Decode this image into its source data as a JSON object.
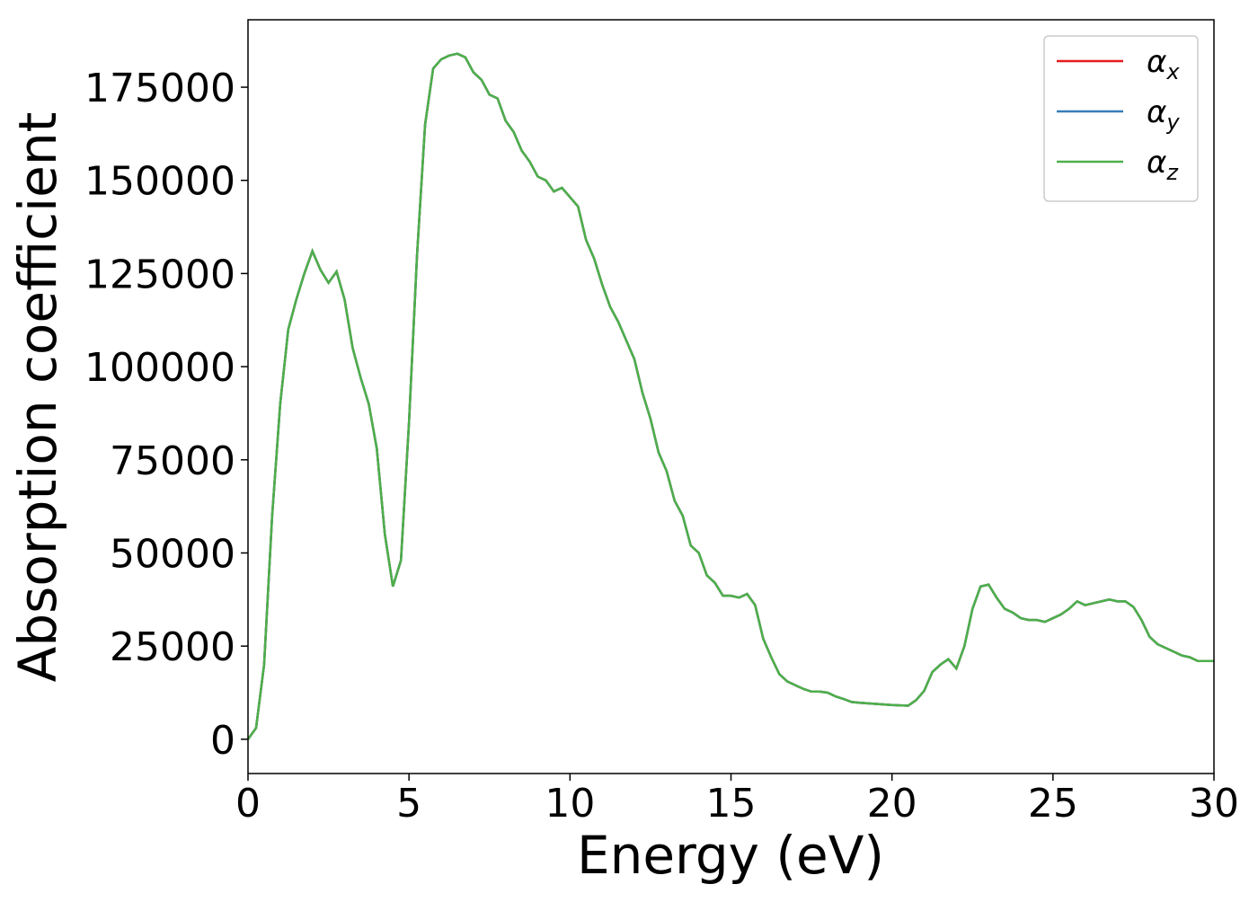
{
  "chart_data": {
    "type": "line",
    "xlabel": "Energy (eV)",
    "ylabel": "Absorption coefficient",
    "x": [
      0,
      0.25,
      0.5,
      0.75,
      1,
      1.25,
      1.5,
      1.75,
      2,
      2.25,
      2.5,
      2.75,
      3,
      3.25,
      3.5,
      3.75,
      4,
      4.25,
      4.5,
      4.75,
      5,
      5.25,
      5.5,
      5.75,
      6,
      6.25,
      6.5,
      6.75,
      7,
      7.25,
      7.5,
      7.75,
      8,
      8.25,
      8.5,
      8.75,
      9,
      9.25,
      9.5,
      9.75,
      10,
      10.25,
      10.5,
      10.75,
      11,
      11.25,
      11.5,
      11.75,
      12,
      12.25,
      12.5,
      12.75,
      13,
      13.25,
      13.5,
      13.75,
      14,
      14.25,
      14.5,
      14.75,
      15,
      15.25,
      15.5,
      15.75,
      16,
      16.25,
      16.5,
      16.75,
      17,
      17.25,
      17.5,
      17.75,
      18,
      18.25,
      18.5,
      18.75,
      19,
      19.5,
      20,
      20.5,
      20.75,
      21,
      21.25,
      21.5,
      21.75,
      22,
      22.25,
      22.5,
      22.75,
      23,
      23.25,
      23.5,
      23.75,
      24,
      24.25,
      24.5,
      24.75,
      25,
      25.25,
      25.5,
      25.75,
      26,
      26.25,
      26.5,
      26.75,
      27,
      27.25,
      27.5,
      27.75,
      28,
      28.25,
      28.5,
      28.75,
      29,
      29.25,
      29.5,
      30
    ],
    "series": [
      {
        "name": "αx",
        "color": "#e41a1c",
        "values": [
          0,
          3000,
          20000,
          60000,
          90000,
          110000,
          118000,
          125000,
          131000,
          126000,
          122500,
          125500,
          118000,
          105000,
          97000,
          90000,
          78000,
          55000,
          41000,
          48000,
          85000,
          130000,
          165000,
          180000,
          182500,
          183500,
          184000,
          183000,
          179000,
          177000,
          173000,
          172000,
          166000,
          163000,
          158000,
          155000,
          151000,
          150000,
          147000,
          148000,
          145500,
          143000,
          134000,
          129000,
          122000,
          116000,
          112000,
          107000,
          102000,
          93000,
          86000,
          77000,
          72000,
          64000,
          60000,
          52000,
          50000,
          44000,
          42000,
          38500,
          38500,
          38000,
          39000,
          36000,
          27000,
          22000,
          17500,
          15500,
          14500,
          13500,
          12800,
          12800,
          12500,
          11500,
          10800,
          10000,
          9800,
          9500,
          9200,
          9000,
          10500,
          13000,
          18000,
          20000,
          21500,
          19000,
          25000,
          35000,
          41000,
          41500,
          38000,
          35000,
          34000,
          32500,
          32000,
          32000,
          31500,
          32500,
          33500,
          35000,
          37000,
          36000,
          36500,
          37000,
          37500,
          37000,
          37000,
          35500,
          32000,
          27500,
          25500,
          24500,
          23500,
          22500,
          22000,
          21000,
          21000
        ]
      },
      {
        "name": "αy",
        "color": "#377eb8",
        "values": [
          0,
          3000,
          20000,
          60000,
          90000,
          110000,
          118000,
          125000,
          131000,
          126000,
          122500,
          125500,
          118000,
          105000,
          97000,
          90000,
          78000,
          55000,
          41000,
          48000,
          85000,
          130000,
          165000,
          180000,
          182500,
          183500,
          184000,
          183000,
          179000,
          177000,
          173000,
          172000,
          166000,
          163000,
          158000,
          155000,
          151000,
          150000,
          147000,
          148000,
          145500,
          143000,
          134000,
          129000,
          122000,
          116000,
          112000,
          107000,
          102000,
          93000,
          86000,
          77000,
          72000,
          64000,
          60000,
          52000,
          50000,
          44000,
          42000,
          38500,
          38500,
          38000,
          39000,
          36000,
          27000,
          22000,
          17500,
          15500,
          14500,
          13500,
          12800,
          12800,
          12500,
          11500,
          10800,
          10000,
          9800,
          9500,
          9200,
          9000,
          10500,
          13000,
          18000,
          20000,
          21500,
          19000,
          25000,
          35000,
          41000,
          41500,
          38000,
          35000,
          34000,
          32500,
          32000,
          32000,
          31500,
          32500,
          33500,
          35000,
          37000,
          36000,
          36500,
          37000,
          37500,
          37000,
          37000,
          35500,
          32000,
          27500,
          25500,
          24500,
          23500,
          22500,
          22000,
          21000,
          21000
        ]
      },
      {
        "name": "αz",
        "color": "#4daf4a",
        "values": [
          0,
          3000,
          20000,
          60000,
          90000,
          110000,
          118000,
          125000,
          131000,
          126000,
          122500,
          125500,
          118000,
          105000,
          97000,
          90000,
          78000,
          55000,
          41000,
          48000,
          85000,
          130000,
          165000,
          180000,
          182500,
          183500,
          184000,
          183000,
          179000,
          177000,
          173000,
          172000,
          166000,
          163000,
          158000,
          155000,
          151000,
          150000,
          147000,
          148000,
          145500,
          143000,
          134000,
          129000,
          122000,
          116000,
          112000,
          107000,
          102000,
          93000,
          86000,
          77000,
          72000,
          64000,
          60000,
          52000,
          50000,
          44000,
          42000,
          38500,
          38500,
          38000,
          39000,
          36000,
          27000,
          22000,
          17500,
          15500,
          14500,
          13500,
          12800,
          12800,
          12500,
          11500,
          10800,
          10000,
          9800,
          9500,
          9200,
          9000,
          10500,
          13000,
          18000,
          20000,
          21500,
          19000,
          25000,
          35000,
          41000,
          41500,
          38000,
          35000,
          34000,
          32500,
          32000,
          32000,
          31500,
          32500,
          33500,
          35000,
          37000,
          36000,
          36500,
          37000,
          37500,
          37000,
          37000,
          35500,
          32000,
          27500,
          25500,
          24500,
          23500,
          22500,
          22000,
          21000,
          21000
        ]
      }
    ],
    "xlim": [
      0,
      30
    ],
    "xticks": [
      0,
      5,
      10,
      15,
      20,
      25,
      30
    ],
    "ylim": [
      -9200,
      193100
    ],
    "yticks": [
      0,
      25000,
      50000,
      75000,
      100000,
      125000,
      150000,
      175000
    ],
    "grid": false,
    "legend": "upper right"
  }
}
